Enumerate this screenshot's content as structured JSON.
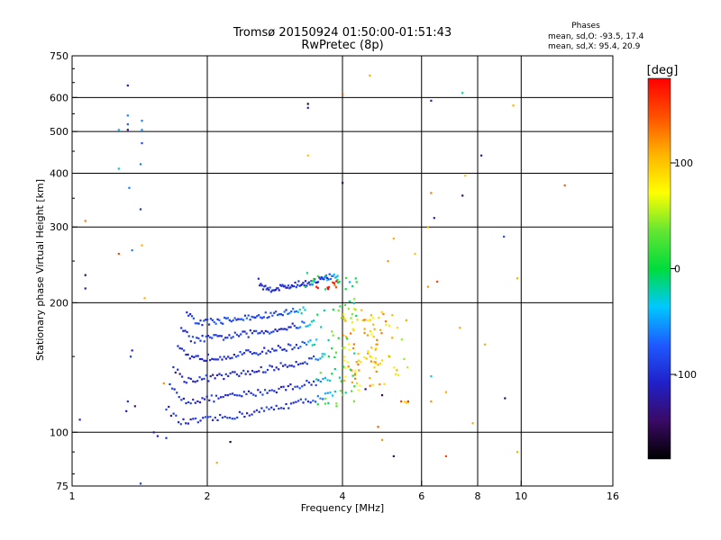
{
  "chart_data": {
    "type": "scatter",
    "title": "Tromsø 20150924 01:50:00-01:51:43",
    "subtitle": "RwPretec (8p)",
    "stats": {
      "heading": "Phases",
      "line_o": "mean, sd,O: -93.5, 17.4",
      "line_x": "mean, sd,X:  95.4, 20.9"
    },
    "xlabel": "Frequency [MHz]",
    "ylabel": "Stationary phase Virtual Height [km]",
    "xscale": "log",
    "yscale": "log",
    "xlim": [
      1,
      16
    ],
    "ylim": [
      75,
      750
    ],
    "xticks": [
      1,
      2,
      4,
      6,
      8,
      10,
      16
    ],
    "xtick_labels": [
      "1",
      "2",
      "4",
      "6",
      "8",
      "10",
      "16"
    ],
    "xgrid": [
      2,
      4,
      6,
      8,
      10
    ],
    "yticks": [
      75,
      100,
      200,
      300,
      400,
      500,
      600,
      750
    ],
    "ytick_labels": [
      "75",
      "100",
      "200",
      "300",
      "400",
      "500",
      "600",
      "750"
    ],
    "ygrid": [
      100,
      200,
      300,
      400,
      500,
      600
    ],
    "grid": true,
    "colorbar": {
      "label": "[deg]",
      "range": [
        -180,
        180
      ],
      "ticks": [
        -100,
        0,
        100
      ],
      "tick_labels": [
        "-100",
        "0",
        "100"
      ]
    },
    "traces": [
      {
        "f_start": 1.62,
        "f_end": 3.85,
        "h_start": 105,
        "h_end": 123,
        "phase": -95
      },
      {
        "f_start": 1.65,
        "f_end": 3.75,
        "h_start": 118,
        "h_end": 133,
        "phase": -100
      },
      {
        "f_start": 1.68,
        "f_end": 3.65,
        "h_start": 132,
        "h_end": 150,
        "phase": -105
      },
      {
        "f_start": 1.72,
        "f_end": 3.5,
        "h_start": 148,
        "h_end": 162,
        "phase": -100
      },
      {
        "f_start": 1.75,
        "f_end": 3.45,
        "h_start": 164,
        "h_end": 180,
        "phase": -95
      },
      {
        "f_start": 1.8,
        "f_end": 3.3,
        "h_start": 180,
        "h_end": 193,
        "phase": -85
      },
      {
        "f_start": 2.6,
        "f_end": 3.9,
        "h_start": 215,
        "h_end": 232,
        "phase": -100
      }
    ],
    "clusters": [
      {
        "f": [
          3.5,
          4.3
        ],
        "h": [
          115,
          205
        ],
        "phase": 10,
        "n": 50
      },
      {
        "f": [
          4.0,
          5.0
        ],
        "h": [
          125,
          195
        ],
        "phase": 100,
        "n": 90
      },
      {
        "f": [
          5.0,
          5.6
        ],
        "h": [
          135,
          190
        ],
        "phase": 80,
        "n": 14
      },
      {
        "f": [
          3.3,
          4.3
        ],
        "h": [
          215,
          235
        ],
        "phase": -15,
        "n": 20
      },
      {
        "f": [
          3.5,
          3.9
        ],
        "h": [
          215,
          225
        ],
        "phase": 160,
        "n": 10
      },
      {
        "f": [
          5.4,
          5.6
        ],
        "h": [
          115,
          120
        ],
        "phase": 120,
        "n": 5
      }
    ],
    "points": [
      {
        "x": 1.33,
        "y": 640,
        "phase": -120
      },
      {
        "x": 1.33,
        "y": 545,
        "phase": -60
      },
      {
        "x": 1.33,
        "y": 520,
        "phase": -70
      },
      {
        "x": 1.33,
        "y": 505,
        "phase": -130
      },
      {
        "x": 1.27,
        "y": 505,
        "phase": -40
      },
      {
        "x": 1.43,
        "y": 530,
        "phase": -60
      },
      {
        "x": 1.43,
        "y": 505,
        "phase": -50
      },
      {
        "x": 1.43,
        "y": 470,
        "phase": -80
      },
      {
        "x": 1.42,
        "y": 420,
        "phase": -60
      },
      {
        "x": 1.27,
        "y": 410,
        "phase": -40
      },
      {
        "x": 1.34,
        "y": 370,
        "phase": -60
      },
      {
        "x": 1.42,
        "y": 330,
        "phase": -100
      },
      {
        "x": 1.07,
        "y": 310,
        "phase": 130
      },
      {
        "x": 1.27,
        "y": 260,
        "phase": 150
      },
      {
        "x": 1.36,
        "y": 265,
        "phase": -60
      },
      {
        "x": 1.43,
        "y": 272,
        "phase": 110
      },
      {
        "x": 1.07,
        "y": 232,
        "phase": -150
      },
      {
        "x": 1.07,
        "y": 216,
        "phase": -130
      },
      {
        "x": 1.36,
        "y": 155,
        "phase": -110
      },
      {
        "x": 1.35,
        "y": 150,
        "phase": -90
      },
      {
        "x": 1.33,
        "y": 118,
        "phase": -100
      },
      {
        "x": 1.38,
        "y": 115,
        "phase": -130
      },
      {
        "x": 1.32,
        "y": 112,
        "phase": -110
      },
      {
        "x": 1.04,
        "y": 107,
        "phase": -110
      },
      {
        "x": 1.45,
        "y": 205,
        "phase": 110
      },
      {
        "x": 1.6,
        "y": 130,
        "phase": 120
      },
      {
        "x": 1.42,
        "y": 76,
        "phase": -90
      },
      {
        "x": 1.55,
        "y": 98,
        "phase": -110
      },
      {
        "x": 1.62,
        "y": 97,
        "phase": -100
      },
      {
        "x": 1.52,
        "y": 100,
        "phase": -120
      },
      {
        "x": 2.1,
        "y": 85,
        "phase": 110
      },
      {
        "x": 2.25,
        "y": 95,
        "phase": -160
      },
      {
        "x": 3.35,
        "y": 580,
        "phase": -160
      },
      {
        "x": 3.35,
        "y": 568,
        "phase": -110
      },
      {
        "x": 3.35,
        "y": 440,
        "phase": 100
      },
      {
        "x": 4.0,
        "y": 610,
        "phase": 140
      },
      {
        "x": 4.0,
        "y": 380,
        "phase": -150
      },
      {
        "x": 4.6,
        "y": 675,
        "phase": 110
      },
      {
        "x": 6.3,
        "y": 590,
        "phase": -110
      },
      {
        "x": 7.4,
        "y": 615,
        "phase": -20
      },
      {
        "x": 9.6,
        "y": 575,
        "phase": 110
      },
      {
        "x": 8.15,
        "y": 440,
        "phase": -120
      },
      {
        "x": 7.5,
        "y": 395,
        "phase": 100
      },
      {
        "x": 7.4,
        "y": 355,
        "phase": -150
      },
      {
        "x": 6.3,
        "y": 360,
        "phase": 130
      },
      {
        "x": 6.4,
        "y": 315,
        "phase": -110
      },
      {
        "x": 6.2,
        "y": 300,
        "phase": 110
      },
      {
        "x": 9.15,
        "y": 285,
        "phase": -80
      },
      {
        "x": 12.5,
        "y": 375,
        "phase": 140
      },
      {
        "x": 9.8,
        "y": 228,
        "phase": 110
      },
      {
        "x": 6.5,
        "y": 224,
        "phase": 150
      },
      {
        "x": 6.2,
        "y": 218,
        "phase": 120
      },
      {
        "x": 5.8,
        "y": 260,
        "phase": 100
      },
      {
        "x": 5.2,
        "y": 282,
        "phase": 110
      },
      {
        "x": 5.05,
        "y": 250,
        "phase": 120
      },
      {
        "x": 7.3,
        "y": 175,
        "phase": 110
      },
      {
        "x": 6.3,
        "y": 135,
        "phase": -30
      },
      {
        "x": 6.8,
        "y": 124,
        "phase": 110
      },
      {
        "x": 9.2,
        "y": 120,
        "phase": -150
      },
      {
        "x": 6.3,
        "y": 118,
        "phase": 120
      },
      {
        "x": 7.8,
        "y": 105,
        "phase": 110
      },
      {
        "x": 8.3,
        "y": 160,
        "phase": 110
      },
      {
        "x": 4.8,
        "y": 103,
        "phase": 140
      },
      {
        "x": 4.9,
        "y": 96,
        "phase": 120
      },
      {
        "x": 5.2,
        "y": 88,
        "phase": -140
      },
      {
        "x": 6.8,
        "y": 88,
        "phase": 150
      },
      {
        "x": 9.8,
        "y": 90,
        "phase": 110
      },
      {
        "x": 4.9,
        "y": 122,
        "phase": -150
      },
      {
        "x": 4.5,
        "y": 126,
        "phase": -140
      },
      {
        "x": 5.6,
        "y": 118,
        "phase": 150
      }
    ]
  }
}
